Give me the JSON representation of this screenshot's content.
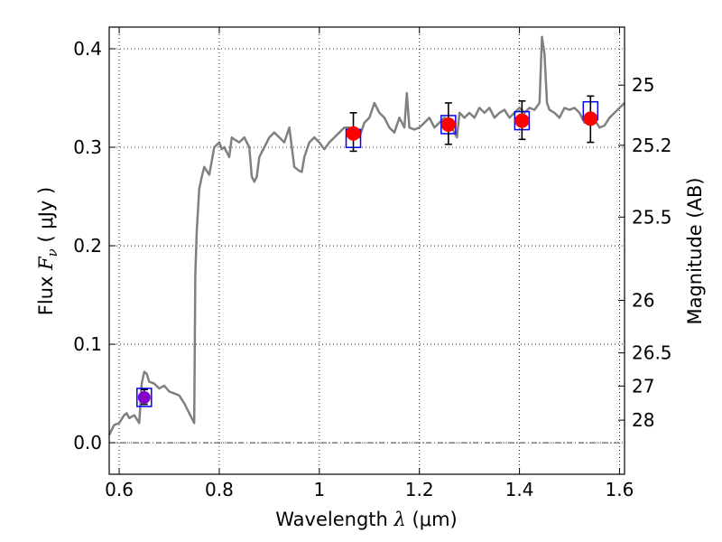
{
  "chart_data": {
    "type": "line",
    "title": "",
    "xlabel": {
      "pre": "Wavelength ",
      "sym": "λ",
      "open": " (",
      "unit": "μm",
      "close": ")"
    },
    "ylabel": {
      "pre": "Flux ",
      "sym": "F",
      "sub": "ν",
      "open": " ( ",
      "unit": "μJy",
      "close": " )"
    },
    "y2label": "Magnitude (AB)",
    "xlim": [
      0.58,
      1.61
    ],
    "ylim": [
      -0.032,
      0.422
    ],
    "grid": true,
    "x_ticks": [
      0.6,
      0.8,
      1.0,
      1.2,
      1.4,
      1.6
    ],
    "x_tick_labels": [
      "0.6",
      "0.8",
      "1",
      "1.2",
      "1.4",
      "1.6"
    ],
    "y_ticks": [
      0.0,
      0.1,
      0.2,
      0.3,
      0.4
    ],
    "y_tick_labels": [
      "0.0",
      "0.1",
      "0.2",
      "0.3",
      "0.4"
    ],
    "mag_ticks": [
      25,
      25.2,
      25.5,
      26,
      26.5,
      27,
      28
    ],
    "mag_tick_labels": [
      "25",
      "25.2",
      "25.5",
      "26",
      "26.5",
      "27",
      "28"
    ],
    "zero_line": 0.0,
    "colors": {
      "spectrum": "#808080",
      "points": "#ff0000",
      "model_box": "#0000ff",
      "blue_point": "#8800cc",
      "errorbar": "#000000"
    },
    "spectrum": {
      "name": "",
      "x": [
        0.58,
        0.59,
        0.6,
        0.61,
        0.615,
        0.62,
        0.63,
        0.64,
        0.645,
        0.65,
        0.655,
        0.66,
        0.67,
        0.68,
        0.69,
        0.7,
        0.71,
        0.72,
        0.73,
        0.74,
        0.745,
        0.75,
        0.752,
        0.755,
        0.76,
        0.765,
        0.77,
        0.78,
        0.79,
        0.8,
        0.805,
        0.81,
        0.82,
        0.825,
        0.83,
        0.84,
        0.85,
        0.86,
        0.865,
        0.87,
        0.875,
        0.88,
        0.89,
        0.9,
        0.91,
        0.92,
        0.93,
        0.94,
        0.95,
        0.96,
        0.965,
        0.97,
        0.98,
        0.99,
        1.0,
        1.01,
        1.02,
        1.03,
        1.04,
        1.05,
        1.06,
        1.07,
        1.08,
        1.09,
        1.1,
        1.11,
        1.12,
        1.13,
        1.14,
        1.15,
        1.16,
        1.17,
        1.175,
        1.18,
        1.19,
        1.2,
        1.21,
        1.22,
        1.23,
        1.24,
        1.25,
        1.26,
        1.27,
        1.275,
        1.28,
        1.29,
        1.3,
        1.31,
        1.32,
        1.33,
        1.34,
        1.35,
        1.36,
        1.37,
        1.38,
        1.39,
        1.4,
        1.41,
        1.42,
        1.43,
        1.44,
        1.445,
        1.45,
        1.455,
        1.46,
        1.47,
        1.48,
        1.49,
        1.5,
        1.51,
        1.52,
        1.53,
        1.54,
        1.55,
        1.56,
        1.57,
        1.58,
        1.59,
        1.6,
        1.61
      ],
      "y": [
        0.008,
        0.018,
        0.02,
        0.028,
        0.03,
        0.025,
        0.028,
        0.02,
        0.06,
        0.072,
        0.07,
        0.062,
        0.06,
        0.055,
        0.058,
        0.052,
        0.05,
        0.048,
        0.04,
        0.03,
        0.025,
        0.02,
        0.17,
        0.215,
        0.258,
        0.27,
        0.28,
        0.272,
        0.3,
        0.305,
        0.298,
        0.3,
        0.29,
        0.31,
        0.308,
        0.305,
        0.31,
        0.3,
        0.27,
        0.265,
        0.27,
        0.29,
        0.3,
        0.31,
        0.315,
        0.31,
        0.305,
        0.32,
        0.28,
        0.276,
        0.275,
        0.29,
        0.305,
        0.31,
        0.305,
        0.298,
        0.305,
        0.31,
        0.315,
        0.32,
        0.32,
        0.315,
        0.31,
        0.325,
        0.33,
        0.345,
        0.335,
        0.33,
        0.32,
        0.315,
        0.33,
        0.32,
        0.355,
        0.32,
        0.318,
        0.32,
        0.325,
        0.33,
        0.32,
        0.325,
        0.33,
        0.325,
        0.315,
        0.31,
        0.335,
        0.33,
        0.335,
        0.33,
        0.34,
        0.335,
        0.34,
        0.33,
        0.335,
        0.338,
        0.33,
        0.335,
        0.34,
        0.335,
        0.34,
        0.338,
        0.345,
        0.412,
        0.395,
        0.345,
        0.338,
        0.335,
        0.33,
        0.34,
        0.338,
        0.34,
        0.335,
        0.325,
        0.335,
        0.328,
        0.32,
        0.322,
        0.33,
        0.335,
        0.34,
        0.345
      ]
    },
    "photometry": {
      "name": "",
      "x": [
        1.068,
        1.258,
        1.405,
        1.542
      ],
      "y": [
        0.314,
        0.323,
        0.327,
        0.329
      ],
      "yerr_low": [
        0.018,
        0.02,
        0.019,
        0.024
      ],
      "yerr_high": [
        0.021,
        0.022,
        0.02,
        0.023
      ]
    },
    "model_boxes": {
      "name": "",
      "x": [
        0.65,
        1.068,
        1.258,
        1.405,
        1.542
      ],
      "y": [
        0.046,
        0.309,
        0.323,
        0.327,
        0.337
      ]
    },
    "blue_point": {
      "name": "",
      "x": [
        0.65
      ],
      "y": [
        0.046
      ],
      "yerr_low": [
        0.007
      ],
      "yerr_high": [
        0.008
      ]
    }
  }
}
